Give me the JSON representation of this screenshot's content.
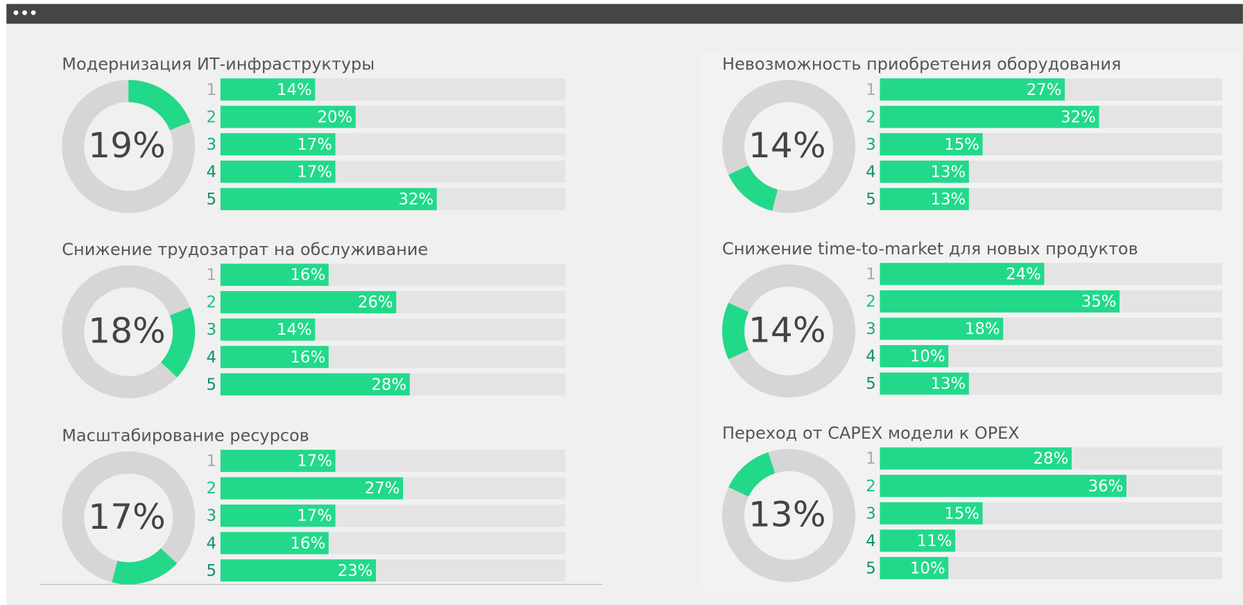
{
  "chart_data": [
    {
      "type": "bar",
      "title": "Модернизация ИТ-инфраструктуры",
      "donut": {
        "value": 19,
        "label": "19%"
      },
      "categories": [
        "1",
        "2",
        "3",
        "4",
        "5"
      ],
      "values": [
        14,
        20,
        17,
        17,
        32
      ],
      "value_labels": [
        "14%",
        "20%",
        "17%",
        "17%",
        "32%"
      ],
      "xlim": [
        0,
        51
      ],
      "color": "#22d98a"
    },
    {
      "type": "bar",
      "title": "Снижение трудозатрат на обслуживание",
      "donut": {
        "value": 18,
        "label": "18%"
      },
      "categories": [
        "1",
        "2",
        "3",
        "4",
        "5"
      ],
      "values": [
        16,
        26,
        14,
        16,
        28
      ],
      "value_labels": [
        "16%",
        "26%",
        "14%",
        "16%",
        "28%"
      ],
      "xlim": [
        0,
        51
      ],
      "color": "#22d98a"
    },
    {
      "type": "bar",
      "title": "Масштабирование ресурсов",
      "donut": {
        "value": 17,
        "label": "17%"
      },
      "categories": [
        "1",
        "2",
        "3",
        "4",
        "5"
      ],
      "values": [
        17,
        27,
        17,
        16,
        23
      ],
      "value_labels": [
        "17%",
        "27%",
        "17%",
        "16%",
        "23%"
      ],
      "xlim": [
        0,
        51
      ],
      "color": "#22d98a"
    },
    {
      "type": "bar",
      "title": "Невозможность приобретения оборудования",
      "donut": {
        "value": 14,
        "label": "14%"
      },
      "categories": [
        "1",
        "2",
        "3",
        "4",
        "5"
      ],
      "values": [
        27,
        32,
        15,
        13,
        13
      ],
      "value_labels": [
        "27%",
        "32%",
        "15%",
        "13%",
        "13%"
      ],
      "xlim": [
        0,
        50
      ],
      "color": "#22d98a"
    },
    {
      "type": "bar",
      "title": "Снижение time-to-market для новых продуктов",
      "donut": {
        "value": 14,
        "label": "14%"
      },
      "categories": [
        "1",
        "2",
        "3",
        "4",
        "5"
      ],
      "values": [
        24,
        35,
        18,
        10,
        13
      ],
      "value_labels": [
        "24%",
        "35%",
        "18%",
        "10%",
        "13%"
      ],
      "xlim": [
        0,
        50
      ],
      "color": "#22d98a"
    },
    {
      "type": "bar",
      "title": "Переход от CAPEX модели к OPEX",
      "donut": {
        "value": 13,
        "label": "13%"
      },
      "categories": [
        "1",
        "2",
        "3",
        "4",
        "5"
      ],
      "values": [
        28,
        36,
        15,
        11,
        10
      ],
      "value_labels": [
        "28%",
        "36%",
        "15%",
        "11%",
        "10%"
      ],
      "xlim": [
        0,
        50
      ],
      "color": "#22d98a"
    }
  ]
}
